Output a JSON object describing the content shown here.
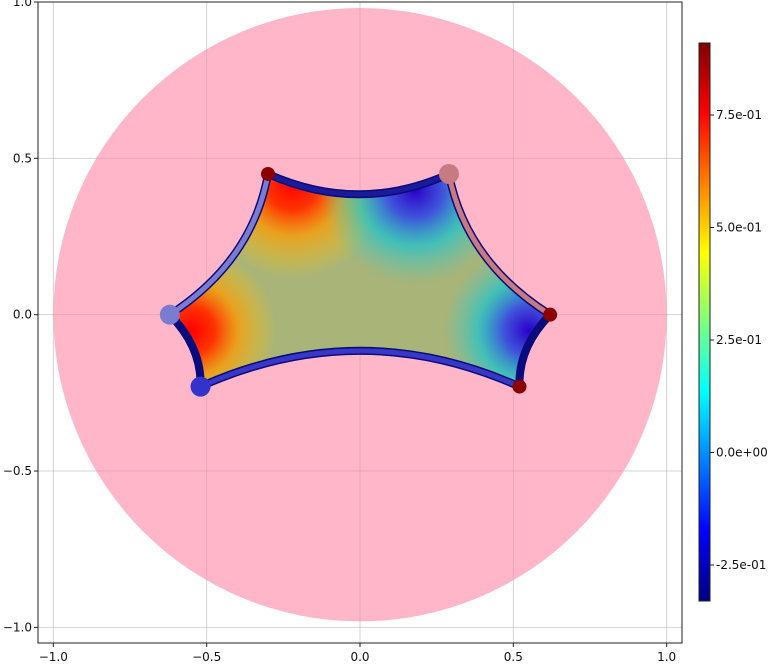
{
  "chart_data": {
    "type": "scatter",
    "title": "",
    "xlabel": "",
    "ylabel": "",
    "xlim": [
      -1.05,
      1.05
    ],
    "ylim": [
      -1.05,
      1.0
    ],
    "grid": true,
    "xticks": [
      -1.0,
      -0.5,
      0.0,
      0.5,
      1.0
    ],
    "yticks": [
      -1.0,
      -0.5,
      0.0,
      0.5,
      1.0
    ],
    "xtick_labels": [
      "−1.0",
      "−0.5",
      "0.0",
      "0.5",
      "1.0"
    ],
    "ytick_labels": [
      "−1.0",
      "−0.5",
      "0.0",
      "0.5",
      "1.0"
    ],
    "disk": {
      "center": [
        0,
        0
      ],
      "radius": 1.0,
      "color": "#ffb6c8"
    },
    "polygon_vertices": [
      [
        -0.3,
        0.45
      ],
      [
        0.29,
        0.45
      ],
      [
        0.62,
        0.0
      ],
      [
        0.52,
        -0.23
      ],
      [
        -0.52,
        -0.23
      ],
      [
        -0.62,
        0.0
      ]
    ],
    "polygon_fill": {
      "high_color_corners": [
        [
          -0.55,
          -0.05
        ],
        [
          -0.22,
          0.42
        ]
      ],
      "low_color_corners": [
        [
          0.18,
          0.4
        ],
        [
          0.55,
          -0.05
        ]
      ],
      "mid_color": "#a8b478"
    },
    "edges": [
      {
        "from": [
          -0.3,
          0.45
        ],
        "to": [
          0.29,
          0.45
        ],
        "color": "#1a1a9a"
      },
      {
        "from": [
          0.29,
          0.45
        ],
        "to": [
          0.62,
          0.0
        ],
        "color": "#c87a82"
      },
      {
        "from": [
          0.62,
          0.0
        ],
        "to": [
          0.52,
          -0.23
        ],
        "color": "#0b0b80"
      },
      {
        "from": [
          0.52,
          -0.23
        ],
        "to": [
          -0.52,
          -0.23
        ],
        "color": "#3838c8"
      },
      {
        "from": [
          -0.52,
          -0.23
        ],
        "to": [
          -0.62,
          0.0
        ],
        "color": "#0b0b80"
      },
      {
        "from": [
          -0.62,
          0.0
        ],
        "to": [
          -0.3,
          0.45
        ],
        "color": "#7b7bd0"
      }
    ],
    "markers": [
      {
        "x": -0.3,
        "y": 0.45,
        "color": "#8b0000",
        "size": "small"
      },
      {
        "x": 0.29,
        "y": 0.45,
        "color": "#c87a82",
        "size": "large"
      },
      {
        "x": 0.62,
        "y": 0.0,
        "color": "#8b0000",
        "size": "small"
      },
      {
        "x": 0.52,
        "y": -0.23,
        "color": "#8b0000",
        "size": "small"
      },
      {
        "x": -0.52,
        "y": -0.23,
        "color": "#3333cc",
        "size": "large"
      },
      {
        "x": -0.62,
        "y": 0.0,
        "color": "#7b7bd0",
        "size": "large"
      }
    ],
    "colorbar": {
      "colormap": "jet",
      "limits": [
        -0.33,
        0.91
      ],
      "ticks": [
        -0.25,
        0.0,
        0.25,
        0.5,
        0.75
      ],
      "tick_labels": [
        "-2.5e-01",
        "0.0e+00",
        "2.5e-01",
        "5.0e-01",
        "7.5e-01"
      ],
      "colors": [
        "#00007f",
        "#0000ff",
        "#007fff",
        "#00ffff",
        "#7fff7f",
        "#ffff00",
        "#ff7f00",
        "#ff0000",
        "#7f0000"
      ]
    }
  }
}
